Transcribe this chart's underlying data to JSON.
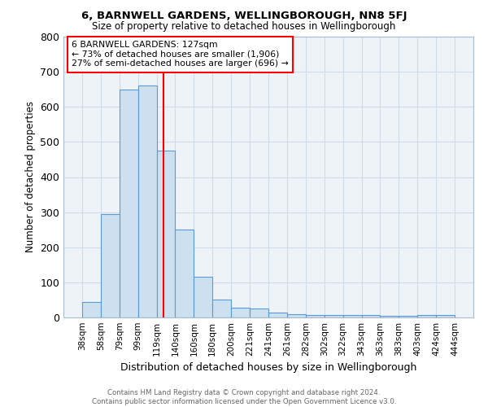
{
  "title": "6, BARNWELL GARDENS, WELLINGBOROUGH, NN8 5FJ",
  "subtitle": "Size of property relative to detached houses in Wellingborough",
  "xlabel": "Distribution of detached houses by size in Wellingborough",
  "ylabel": "Number of detached properties",
  "footer_line1": "Contains HM Land Registry data © Crown copyright and database right 2024.",
  "footer_line2": "Contains public sector information licensed under the Open Government Licence v3.0.",
  "bar_labels": [
    "38sqm",
    "58sqm",
    "79sqm",
    "99sqm",
    "119sqm",
    "140sqm",
    "160sqm",
    "180sqm",
    "200sqm",
    "221sqm",
    "241sqm",
    "261sqm",
    "282sqm",
    "302sqm",
    "322sqm",
    "343sqm",
    "363sqm",
    "383sqm",
    "403sqm",
    "424sqm",
    "444sqm"
  ],
  "bar_values": [
    45,
    295,
    650,
    660,
    475,
    250,
    115,
    50,
    28,
    25,
    15,
    10,
    8,
    7,
    6,
    6,
    5,
    5,
    8,
    8,
    0
  ],
  "bar_color": "#cce0f0",
  "bar_edge_color": "#5b9bd5",
  "grid_color": "#d0dde8",
  "bg_color": "#eef3f8",
  "red_line_x": 127,
  "annotation_text": "6 BARNWELL GARDENS: 127sqm\n← 73% of detached houses are smaller (1,906)\n27% of semi-detached houses are larger (696) →",
  "annotation_box_color": "white",
  "annotation_box_edge": "red",
  "ylim": [
    0,
    800
  ],
  "yticks": [
    0,
    100,
    200,
    300,
    400,
    500,
    600,
    700,
    800
  ],
  "property_line_color": "red",
  "bin_edges": [
    38,
    58,
    79,
    99,
    119,
    140,
    160,
    180,
    200,
    221,
    241,
    261,
    282,
    302,
    322,
    343,
    363,
    383,
    403,
    424,
    444
  ]
}
